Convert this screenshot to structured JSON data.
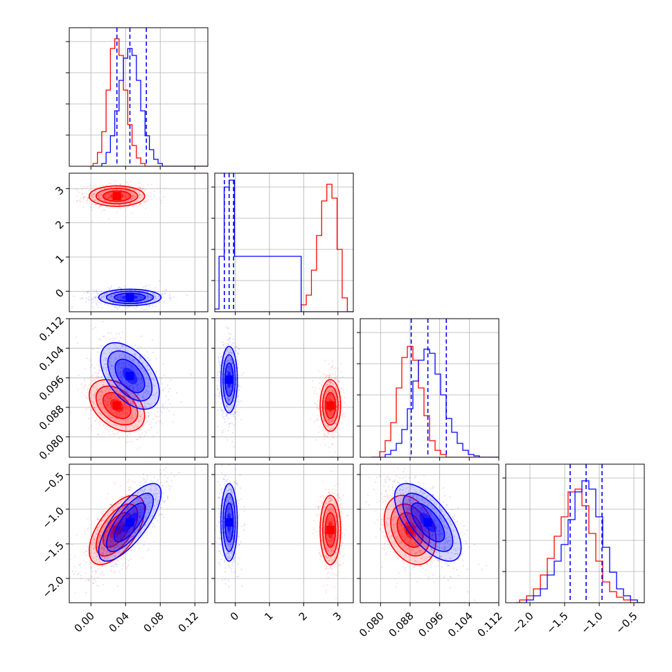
{
  "chart_data": {
    "type": "corner",
    "colors": {
      "series_a": "#0000ff",
      "series_b": "#ff0000"
    },
    "grid": true,
    "parameters": [
      {
        "range": [
          -0.025,
          0.135
        ],
        "ticks": [
          0.0,
          0.04,
          0.08,
          0.12
        ],
        "tick_labels": [
          "0.00",
          "0.04",
          "0.08",
          "0.12"
        ]
      },
      {
        "range": [
          -0.6,
          3.45
        ],
        "ticks": [
          0,
          1,
          2,
          3
        ],
        "tick_labels": [
          "0",
          "1",
          "2",
          "3"
        ]
      },
      {
        "range": [
          0.0745,
          0.112
        ],
        "ticks": [
          0.08,
          0.088,
          0.096,
          0.104,
          0.112
        ],
        "tick_labels": [
          "0.080",
          "0.088",
          "0.096",
          "0.104",
          "0.112"
        ]
      },
      {
        "range": [
          -2.35,
          -0.35
        ],
        "ticks": [
          -2.0,
          -1.5,
          -1.0,
          -0.5
        ],
        "tick_labels": [
          "−2.0",
          "−1.5",
          "−1.0",
          "−0.5"
        ]
      }
    ],
    "quantile_lines": [
      [
        0.03,
        0.045,
        0.064
      ],
      [
        -0.32,
        -0.18,
        -0.05
      ],
      [
        0.0883,
        0.0928,
        0.0978
      ],
      [
        -1.42,
        -1.19,
        -0.96
      ]
    ],
    "histograms": [
      {
        "bins": [
          0.005,
          0.01,
          0.015,
          0.02,
          0.025,
          0.03,
          0.035,
          0.04,
          0.045,
          0.05,
          0.055,
          0.06,
          0.065,
          0.07,
          0.075,
          0.08,
          0.085,
          0.09
        ],
        "series_a": [
          0.0,
          0.0,
          0.02,
          0.1,
          0.22,
          0.4,
          0.62,
          0.78,
          0.85,
          0.8,
          0.62,
          0.4,
          0.22,
          0.12,
          0.05,
          0.02,
          0.0,
          0.0
        ],
        "series_b": [
          0.02,
          0.1,
          0.25,
          0.55,
          0.85,
          0.92,
          0.8,
          0.55,
          0.3,
          0.15,
          0.06,
          0.02,
          0.0,
          0.0,
          0.0,
          0.0,
          0.0,
          0.0
        ]
      },
      {
        "bins": [
          -0.55,
          -0.4,
          -0.25,
          -0.1,
          0.05,
          2.0,
          2.15,
          2.3,
          2.45,
          2.6,
          2.75,
          2.9,
          3.05,
          3.2
        ],
        "series_a": [
          0.02,
          0.4,
          0.9,
          0.95,
          0.4,
          0,
          0,
          0,
          0,
          0,
          0,
          0,
          0,
          0
        ],
        "series_b": [
          0,
          0,
          0,
          0,
          0,
          0.05,
          0.12,
          0.3,
          0.55,
          0.8,
          0.92,
          0.82,
          0.45,
          0.1
        ]
      },
      {
        "bins": [
          0.079,
          0.0805,
          0.082,
          0.0835,
          0.085,
          0.0865,
          0.088,
          0.0895,
          0.091,
          0.0925,
          0.094,
          0.0955,
          0.097,
          0.0985,
          0.1,
          0.1015,
          0.103,
          0.1045,
          0.106,
          0.1075
        ],
        "series_a": [
          0.0,
          0.0,
          0.02,
          0.05,
          0.1,
          0.2,
          0.35,
          0.55,
          0.7,
          0.78,
          0.75,
          0.6,
          0.45,
          0.28,
          0.18,
          0.1,
          0.05,
          0.02,
          0.01,
          0.0
        ],
        "series_b": [
          0.0,
          0.04,
          0.12,
          0.25,
          0.5,
          0.72,
          0.8,
          0.7,
          0.5,
          0.3,
          0.12,
          0.05,
          0.02,
          0.0,
          0.0,
          0.0,
          0.0,
          0.0,
          0.0,
          0.0
        ]
      },
      {
        "bins": [
          -2.1,
          -2.0,
          -1.9,
          -1.8,
          -1.7,
          -1.6,
          -1.5,
          -1.4,
          -1.3,
          -1.2,
          -1.1,
          -1.0,
          -0.9,
          -0.8,
          -0.7,
          -0.6,
          -0.5
        ],
        "series_a": [
          0.0,
          0.02,
          0.05,
          0.1,
          0.2,
          0.3,
          0.42,
          0.6,
          0.8,
          0.88,
          0.82,
          0.62,
          0.4,
          0.22,
          0.1,
          0.05,
          0.02
        ],
        "series_b": [
          0.02,
          0.05,
          0.1,
          0.2,
          0.32,
          0.48,
          0.62,
          0.8,
          0.82,
          0.7,
          0.5,
          0.3,
          0.15,
          0.08,
          0.04,
          0.02,
          0.0
        ]
      }
    ],
    "clusters": {
      "1_0": {
        "series_a": [
          {
            "mx": 0.045,
            "my": -0.18,
            "sx": 0.018,
            "sy": 0.12,
            "rho": 0.0
          }
        ],
        "series_b": [
          {
            "mx": 0.03,
            "my": 2.78,
            "sx": 0.016,
            "sy": 0.15,
            "rho": 0.0
          }
        ]
      },
      "2_0": {
        "series_a": [
          {
            "mx": 0.045,
            "my": 0.0965,
            "sx": 0.017,
            "sy": 0.0045,
            "rho": -0.5
          }
        ],
        "series_b": [
          {
            "mx": 0.03,
            "my": 0.0885,
            "sx": 0.016,
            "sy": 0.0035,
            "rho": -0.4
          }
        ]
      },
      "2_1": {
        "series_a": [
          {
            "mx": -0.18,
            "my": 0.0955,
            "sx": 0.12,
            "sy": 0.0045,
            "rho": 0.0
          }
        ],
        "series_b": [
          {
            "mx": 2.78,
            "my": 0.0885,
            "sx": 0.15,
            "sy": 0.0035,
            "rho": 0.0
          }
        ]
      },
      "3_0": {
        "series_a": [
          {
            "mx": 0.045,
            "my": -1.19,
            "sx": 0.018,
            "sy": 0.28,
            "rho": 0.75
          }
        ],
        "series_b": [
          {
            "mx": 0.03,
            "my": -1.3,
            "sx": 0.016,
            "sy": 0.25,
            "rho": 0.6
          }
        ]
      },
      "3_1": {
        "series_a": [
          {
            "mx": -0.18,
            "my": -1.19,
            "sx": 0.12,
            "sy": 0.28,
            "rho": 0.0
          }
        ],
        "series_b": [
          {
            "mx": 2.78,
            "my": -1.3,
            "sx": 0.15,
            "sy": 0.25,
            "rho": 0.0
          }
        ]
      },
      "3_2": {
        "series_a": [
          {
            "mx": 0.0928,
            "my": -1.19,
            "sx": 0.0045,
            "sy": 0.28,
            "rho": -0.65
          }
        ],
        "series_b": [
          {
            "mx": 0.088,
            "my": -1.3,
            "sx": 0.0035,
            "sy": 0.25,
            "rho": -0.3
          }
        ]
      }
    }
  }
}
